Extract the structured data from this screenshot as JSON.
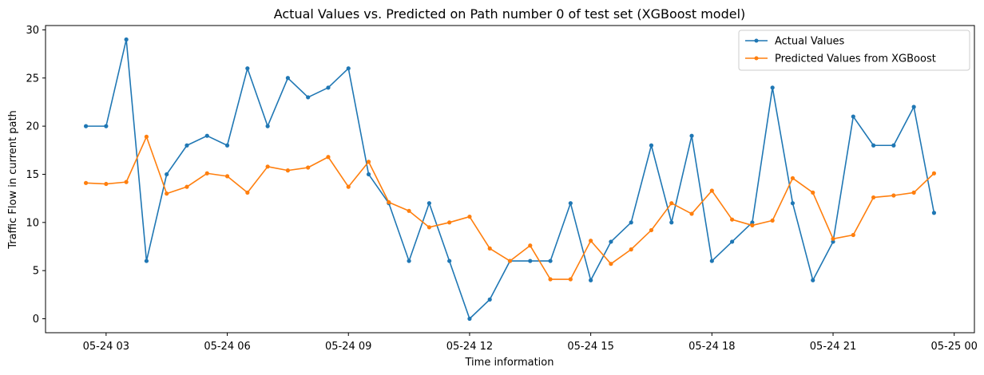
{
  "chart_data": {
    "type": "line",
    "title": "Actual Values vs. Predicted on  Path number 0 of test set (XGBoost model)",
    "xlabel": "Time information",
    "ylabel": "Traffic Flow in current path",
    "x_unit": "hours since 2024-05-24 00:00",
    "x": [
      2.5,
      3,
      3.5,
      4,
      4.5,
      5,
      5.5,
      6,
      6.5,
      7,
      7.5,
      8,
      8.5,
      9,
      9.5,
      10,
      10.5,
      11,
      11.5,
      12,
      12.5,
      13,
      13.5,
      14,
      14.5,
      15,
      15.5,
      16,
      16.5,
      17,
      17.5,
      18,
      18.5,
      19,
      19.5,
      20,
      20.5,
      21,
      21.5,
      22,
      22.5,
      23,
      23.5
    ],
    "xlim": [
      1.5,
      24.5
    ],
    "ylim": [
      -1.45,
      30.45
    ],
    "xticks": [
      {
        "value": 3,
        "label": "05-24 03"
      },
      {
        "value": 6,
        "label": "05-24 06"
      },
      {
        "value": 9,
        "label": "05-24 09"
      },
      {
        "value": 12,
        "label": "05-24 12"
      },
      {
        "value": 15,
        "label": "05-24 15"
      },
      {
        "value": 18,
        "label": "05-24 18"
      },
      {
        "value": 21,
        "label": "05-24 21"
      },
      {
        "value": 24,
        "label": "05-25 00"
      }
    ],
    "yticks": [
      {
        "value": 0,
        "label": "0"
      },
      {
        "value": 5,
        "label": "5"
      },
      {
        "value": 10,
        "label": "10"
      },
      {
        "value": 15,
        "label": "15"
      },
      {
        "value": 20,
        "label": "20"
      },
      {
        "value": 25,
        "label": "25"
      },
      {
        "value": 30,
        "label": "30"
      }
    ],
    "legend_position": "top-right",
    "grid": false,
    "series": [
      {
        "name": "Actual Values",
        "color": "#1f77b4",
        "values": [
          20,
          20,
          29,
          6,
          15,
          18,
          19,
          18,
          26,
          20,
          25,
          23,
          24,
          26,
          15,
          12,
          6,
          12,
          6,
          0,
          2,
          6,
          6,
          6,
          12,
          4,
          8,
          10,
          18,
          10,
          19,
          6,
          8,
          10,
          24,
          12,
          4,
          8,
          21,
          18,
          18,
          22,
          11
        ]
      },
      {
        "name": "Predicted Values from XGBoost",
        "color": "#ff7f0e",
        "values": [
          14.1,
          14,
          14.2,
          18.9,
          13,
          13.7,
          15.1,
          14.8,
          13.1,
          15.8,
          15.4,
          15.7,
          16.8,
          13.7,
          16.3,
          12.1,
          11.2,
          9.5,
          10,
          10.6,
          7.3,
          6,
          7.6,
          4.1,
          4.1,
          8.1,
          5.7,
          7.2,
          9.2,
          12,
          10.9,
          13.3,
          10.3,
          9.7,
          10.2,
          14.6,
          13.1,
          8.3,
          8.7,
          12.6,
          12.8,
          13.1,
          15.1
        ]
      }
    ]
  }
}
